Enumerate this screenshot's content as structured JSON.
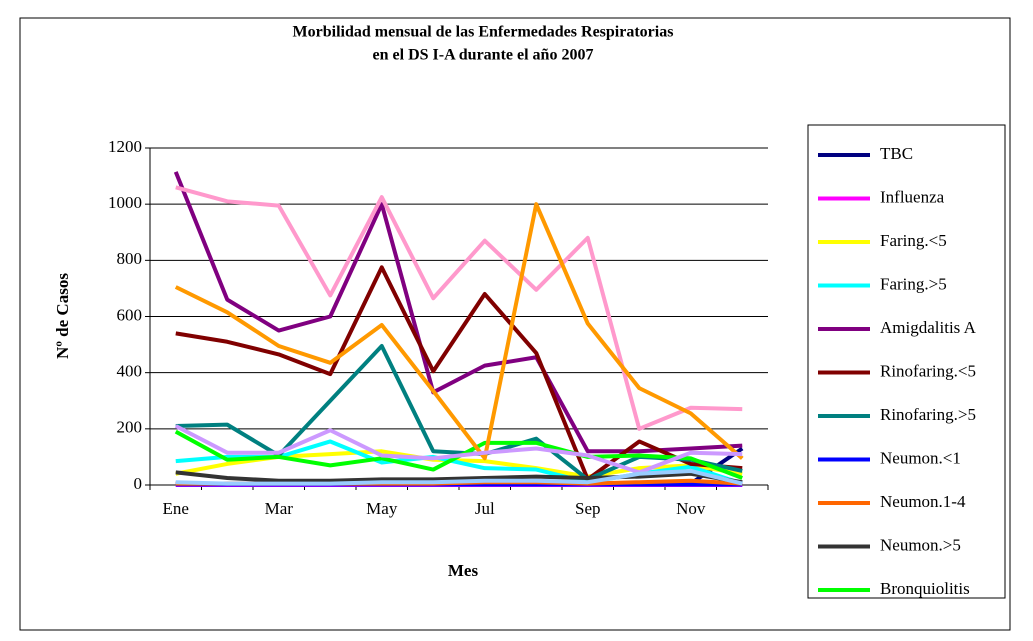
{
  "chart_data": {
    "type": "line",
    "title": [
      "Morbilidad mensual de las Enfermedades Respiratorias",
      "en el DS I-A durante el año 2007"
    ],
    "x_label": "Mes",
    "y_label": "Nº de Casos",
    "categories": [
      "Ene",
      null,
      "Mar",
      null,
      "May",
      null,
      "Jul",
      null,
      "Sep",
      null,
      "Nov",
      null
    ],
    "ylim": [
      0,
      1200
    ],
    "yticks": [
      0,
      200,
      400,
      600,
      800,
      1000,
      1200
    ],
    "grid": true,
    "legend": "right",
    "series": [
      {
        "name": "TBC",
        "color": "#000080",
        "values": [
          5,
          5,
          5,
          5,
          5,
          5,
          5,
          5,
          5,
          5,
          5,
          130
        ]
      },
      {
        "name": "Influenza",
        "color": "#ff00ff",
        "values": [
          0,
          0,
          0,
          0,
          0,
          0,
          0,
          0,
          0,
          0,
          0,
          0
        ]
      },
      {
        "name": "Faring.<5",
        "color": "#ffff00",
        "values": [
          40,
          75,
          100,
          110,
          120,
          90,
          85,
          60,
          30,
          60,
          70,
          40
        ]
      },
      {
        "name": "Faring.>5",
        "color": "#00ffff",
        "values": [
          85,
          100,
          100,
          155,
          80,
          100,
          60,
          55,
          10,
          40,
          65,
          5
        ]
      },
      {
        "name": "Amigdalitis  A",
        "color": "#800080",
        "values": [
          1115,
          660,
          550,
          600,
          1000,
          330,
          425,
          455,
          120,
          120,
          130,
          140
        ]
      },
      {
        "name": "Rinofaring.<5",
        "color": "#800000",
        "values": [
          540,
          510,
          465,
          395,
          775,
          405,
          680,
          470,
          20,
          155,
          75,
          60
        ]
      },
      {
        "name": "Rinofaring.>5",
        "color": "#008080",
        "values": [
          210,
          215,
          105,
          300,
          495,
          120,
          110,
          165,
          20,
          100,
          90,
          50
        ]
      },
      {
        "name": "Neumon.<1",
        "color": "#0000ff",
        "values": [
          2,
          2,
          2,
          2,
          2,
          2,
          2,
          2,
          2,
          2,
          2,
          2
        ]
      },
      {
        "name": "Neumon.1-4",
        "color": "#ff6600",
        "values": [
          5,
          5,
          5,
          5,
          5,
          5,
          10,
          10,
          5,
          10,
          15,
          5
        ]
      },
      {
        "name": "Neumon.>5",
        "color": "#333333",
        "values": [
          45,
          25,
          15,
          15,
          20,
          20,
          25,
          30,
          25,
          30,
          40,
          10
        ]
      },
      {
        "name": "Bronquiolitis",
        "color": "#00ff00",
        "values": [
          190,
          90,
          100,
          70,
          95,
          55,
          150,
          150,
          100,
          105,
          95,
          25
        ]
      },
      {
        "color": "#ff99cc",
        "values": [
          1060,
          1010,
          995,
          675,
          1025,
          665,
          870,
          695,
          880,
          200,
          275,
          270
        ]
      },
      {
        "color": "#ff9900",
        "values": [
          705,
          615,
          495,
          435,
          570,
          335,
          95,
          1000,
          575,
          345,
          255,
          95
        ]
      },
      {
        "color": "#cc99ff",
        "values": [
          210,
          115,
          115,
          195,
          105,
          95,
          115,
          130,
          105,
          45,
          115,
          110
        ]
      },
      {
        "color": "#99ccff",
        "values": [
          10,
          5,
          5,
          5,
          10,
          10,
          15,
          15,
          10,
          40,
          50,
          5
        ]
      }
    ]
  }
}
